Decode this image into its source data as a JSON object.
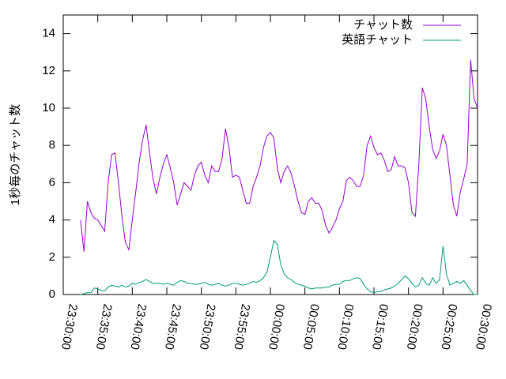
{
  "chart_data": {
    "type": "line",
    "ylabel": "1秒毎のチャット数",
    "xlim": [
      "23:30:00",
      "00:30:00"
    ],
    "xticks": [
      "23:30:00",
      "23:35:00",
      "23:40:00",
      "23:45:00",
      "23:50:00",
      "23:55:00",
      "00:00:00",
      "00:05:00",
      "00:10:00",
      "00:15:00",
      "00:20:00",
      "00:25:00",
      "00:30:00"
    ],
    "ylim": [
      0,
      15
    ],
    "yticks": [
      0,
      2,
      4,
      6,
      8,
      10,
      12,
      14
    ],
    "legend": "top-right",
    "x": [
      "23:32:30",
      "23:33:00",
      "23:33:30",
      "23:34:00",
      "23:34:30",
      "23:35:00",
      "23:35:30",
      "23:36:00",
      "23:36:30",
      "23:37:00",
      "23:37:30",
      "23:38:00",
      "23:38:30",
      "23:39:00",
      "23:39:30",
      "23:40:00",
      "23:40:30",
      "23:41:00",
      "23:41:30",
      "23:42:00",
      "23:42:30",
      "23:43:00",
      "23:43:30",
      "23:44:00",
      "23:44:30",
      "23:45:00",
      "23:45:30",
      "23:46:00",
      "23:46:30",
      "23:47:00",
      "23:47:30",
      "23:48:00",
      "23:48:30",
      "23:49:00",
      "23:49:30",
      "23:50:00",
      "23:50:30",
      "23:51:00",
      "23:51:30",
      "23:52:00",
      "23:52:30",
      "23:53:00",
      "23:53:30",
      "23:54:00",
      "23:54:30",
      "23:55:00",
      "23:55:30",
      "23:56:00",
      "23:56:30",
      "23:57:00",
      "23:57:30",
      "23:58:00",
      "23:58:30",
      "23:59:00",
      "23:59:30",
      "00:00:00",
      "00:00:30",
      "00:01:00",
      "00:01:30",
      "00:02:00",
      "00:02:30",
      "00:03:00",
      "00:03:30",
      "00:04:00",
      "00:04:30",
      "00:05:00",
      "00:05:30",
      "00:06:00",
      "00:06:30",
      "00:07:00",
      "00:07:30",
      "00:08:00",
      "00:08:30",
      "00:09:00",
      "00:09:30",
      "00:10:00",
      "00:10:30",
      "00:11:00",
      "00:11:30",
      "00:12:00",
      "00:12:30",
      "00:13:00",
      "00:13:30",
      "00:14:00",
      "00:14:30",
      "00:15:00",
      "00:15:30",
      "00:16:00",
      "00:16:30",
      "00:17:00",
      "00:17:30",
      "00:18:00",
      "00:18:30",
      "00:19:00",
      "00:19:30",
      "00:20:00",
      "00:20:30",
      "00:21:00",
      "00:21:30",
      "00:22:00",
      "00:22:30",
      "00:23:00",
      "00:23:30",
      "00:24:00",
      "00:24:30",
      "00:25:00",
      "00:25:30",
      "00:26:00",
      "00:26:30",
      "00:27:00",
      "00:27:30",
      "00:28:00",
      "00:28:30",
      "00:29:00",
      "00:29:30",
      "00:30:00"
    ],
    "series": [
      {
        "name": "チャット数",
        "color": "#9400d3",
        "values": [
          4.0,
          2.3,
          5.0,
          4.4,
          4.1,
          4.0,
          3.7,
          3.4,
          6.0,
          7.5,
          7.6,
          6.0,
          4.2,
          2.8,
          2.4,
          4.0,
          5.5,
          7.1,
          8.3,
          9.1,
          7.6,
          6.2,
          5.4,
          6.3,
          7.0,
          7.5,
          6.8,
          6.0,
          4.8,
          5.4,
          6.0,
          5.8,
          5.6,
          6.4,
          6.9,
          7.1,
          6.4,
          6.0,
          6.9,
          6.6,
          6.6,
          7.3,
          8.9,
          7.9,
          6.3,
          6.4,
          6.3,
          5.6,
          4.9,
          4.9,
          5.8,
          6.3,
          6.9,
          7.9,
          8.5,
          8.7,
          8.4,
          6.8,
          6.0,
          6.6,
          6.9,
          6.5,
          5.8,
          5.0,
          4.4,
          4.3,
          5.0,
          5.2,
          4.9,
          4.9,
          4.5,
          3.7,
          3.3,
          3.6,
          4.0,
          4.6,
          5.0,
          6.1,
          6.3,
          6.1,
          5.8,
          5.8,
          6.4,
          8.0,
          8.5,
          7.9,
          7.5,
          7.6,
          7.2,
          6.6,
          6.7,
          7.4,
          6.9,
          6.9,
          6.8,
          6.0,
          4.4,
          4.2,
          7.0,
          11.1,
          10.5,
          9.0,
          7.8,
          7.3,
          7.7,
          8.6,
          8.0,
          6.4,
          4.8,
          4.2,
          5.5,
          6.2,
          7.0,
          12.6,
          10.5,
          10.0
        ]
      },
      {
        "name": "英語チャット",
        "color": "#009e73",
        "values": [
          0.0,
          0.05,
          0.1,
          0.1,
          0.35,
          0.3,
          0.2,
          0.2,
          0.4,
          0.5,
          0.45,
          0.4,
          0.5,
          0.4,
          0.45,
          0.6,
          0.55,
          0.65,
          0.7,
          0.8,
          0.7,
          0.6,
          0.6,
          0.6,
          0.55,
          0.6,
          0.55,
          0.5,
          0.65,
          0.75,
          0.7,
          0.6,
          0.6,
          0.55,
          0.55,
          0.6,
          0.65,
          0.55,
          0.5,
          0.55,
          0.6,
          0.5,
          0.45,
          0.5,
          0.6,
          0.6,
          0.55,
          0.5,
          0.55,
          0.6,
          0.7,
          0.65,
          0.75,
          0.9,
          1.2,
          2.0,
          2.9,
          2.7,
          1.6,
          1.1,
          0.9,
          0.8,
          0.65,
          0.55,
          0.5,
          0.45,
          0.35,
          0.3,
          0.35,
          0.35,
          0.35,
          0.4,
          0.4,
          0.5,
          0.55,
          0.55,
          0.7,
          0.75,
          0.75,
          0.85,
          0.9,
          0.85,
          0.55,
          0.3,
          0.15,
          0.1,
          0.15,
          0.15,
          0.25,
          0.3,
          0.35,
          0.45,
          0.6,
          0.8,
          1.0,
          0.85,
          0.6,
          0.4,
          0.5,
          0.9,
          0.6,
          0.5,
          0.9,
          0.6,
          0.8,
          2.6,
          1.1,
          0.5,
          0.6,
          0.7,
          0.6,
          0.75,
          0.5,
          0.2,
          0.0,
          0.0
        ]
      }
    ]
  }
}
